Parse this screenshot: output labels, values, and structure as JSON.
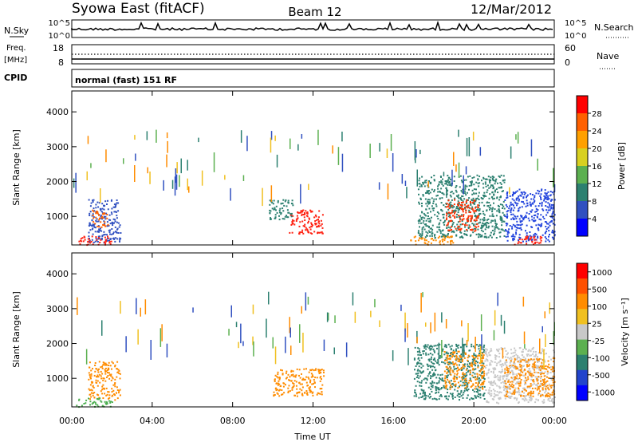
{
  "header": {
    "station": "Syowa East (fitACF)",
    "beam": "Beam 12",
    "date": "12/Mar/2012"
  },
  "top_panel": {
    "left_label": "N.Sky",
    "right_label": "N.Search",
    "left_ticks": [
      "10^5",
      "10^0"
    ],
    "right_ticks": [
      "10^5",
      "10^0"
    ]
  },
  "freq_panel": {
    "left_label_1": "Freq.",
    "left_label_2": "[MHz]",
    "right_label": "Nave",
    "left_ticks": [
      "18",
      "8"
    ],
    "right_ticks": [
      "60",
      "0"
    ]
  },
  "cpid_panel": {
    "label": "CPID",
    "text": "normal (fast) 151 RF"
  },
  "colors": {
    "blue": "#2244dd",
    "darkgreen": "#1a7a5a",
    "green": "#4caf50",
    "grey": "#c8c8c8",
    "orange": "#ff8c00",
    "yellow": "#f0c020",
    "red": "#ff2010"
  },
  "chart_data": [
    {
      "type": "heatmap",
      "title": "",
      "xlabel": "",
      "ylabel": "Slant Range [km]",
      "x_ticks": [
        "00:00",
        "04:00",
        "08:00",
        "12:00",
        "16:00",
        "20:00",
        "00:00"
      ],
      "y_ticks": [
        "1000",
        "2000",
        "3000",
        "4000"
      ],
      "ylim": [
        180,
        4600
      ],
      "colorbar_label": "Power [dB]",
      "colorbar_ticks": [
        "4",
        "8",
        "12",
        "16",
        "20",
        "24",
        "28"
      ],
      "colorbar_colors": [
        "#0000ff",
        "#3050c0",
        "#2c8070",
        "#5cb050",
        "#d8d020",
        "#ffa000",
        "#ff6000",
        "#ff0000"
      ],
      "regions": [
        {
          "t0": 0.8,
          "t1": 2.4,
          "r0": 250,
          "r1": 1500,
          "color": "#3050c0"
        },
        {
          "t0": 1.0,
          "t1": 1.8,
          "r0": 700,
          "r1": 1200,
          "color": "#ff6000"
        },
        {
          "t0": 0.3,
          "t1": 2.0,
          "r0": 200,
          "r1": 450,
          "color": "#ff2010"
        },
        {
          "t0": 10.8,
          "t1": 12.5,
          "r0": 500,
          "r1": 1200,
          "color": "#ff2010"
        },
        {
          "t0": 9.8,
          "t1": 11.0,
          "r0": 900,
          "r1": 1500,
          "color": "#2c8070"
        },
        {
          "t0": 17.2,
          "t1": 21.5,
          "r0": 400,
          "r1": 2200,
          "color": "#2c8070"
        },
        {
          "t0": 18.6,
          "t1": 20.2,
          "r0": 600,
          "r1": 1500,
          "color": "#ff3000"
        },
        {
          "t0": 16.8,
          "t1": 19.0,
          "r0": 200,
          "r1": 450,
          "color": "#ff8c00"
        },
        {
          "t0": 21.5,
          "t1": 24.0,
          "r0": 300,
          "r1": 1800,
          "color": "#2244dd"
        },
        {
          "t0": 22.0,
          "t1": 23.5,
          "r0": 200,
          "r1": 450,
          "color": "#ff2010"
        }
      ]
    },
    {
      "type": "heatmap",
      "title": "",
      "xlabel": "Time UT",
      "ylabel": "Slant Range [km]",
      "x_ticks": [
        "00:00",
        "04:00",
        "08:00",
        "12:00",
        "16:00",
        "20:00",
        "00:00"
      ],
      "y_ticks": [
        "1000",
        "2000",
        "3000",
        "4000"
      ],
      "ylim": [
        180,
        4600
      ],
      "colorbar_label": "Velocity [m s⁻¹]",
      "colorbar_ticks": [
        "1000",
        "500",
        "100",
        "25",
        "-25",
        "-100",
        "-500",
        "-1000"
      ],
      "colorbar_colors": [
        "#0000ff",
        "#2244cc",
        "#2c8070",
        "#5cb050",
        "#c8c8c8",
        "#f0c020",
        "#ff8c00",
        "#ff5000",
        "#ff0000"
      ],
      "regions": [
        {
          "t0": 0.8,
          "t1": 2.4,
          "r0": 400,
          "r1": 1500,
          "color": "#ff8c00"
        },
        {
          "t0": 0.2,
          "t1": 2.0,
          "r0": 200,
          "r1": 450,
          "color": "#4caf50"
        },
        {
          "t0": 10.0,
          "t1": 12.5,
          "r0": 500,
          "r1": 1300,
          "color": "#ff8c00"
        },
        {
          "t0": 17.0,
          "t1": 20.5,
          "r0": 400,
          "r1": 2000,
          "color": "#2c8070"
        },
        {
          "t0": 18.5,
          "t1": 20.5,
          "r0": 700,
          "r1": 1800,
          "color": "#ff8c00"
        },
        {
          "t0": 20.5,
          "t1": 24.0,
          "r0": 300,
          "r1": 1900,
          "color": "#c8c8c8"
        },
        {
          "t0": 21.5,
          "t1": 24.0,
          "r0": 500,
          "r1": 1600,
          "color": "#ff8c00"
        }
      ]
    }
  ]
}
